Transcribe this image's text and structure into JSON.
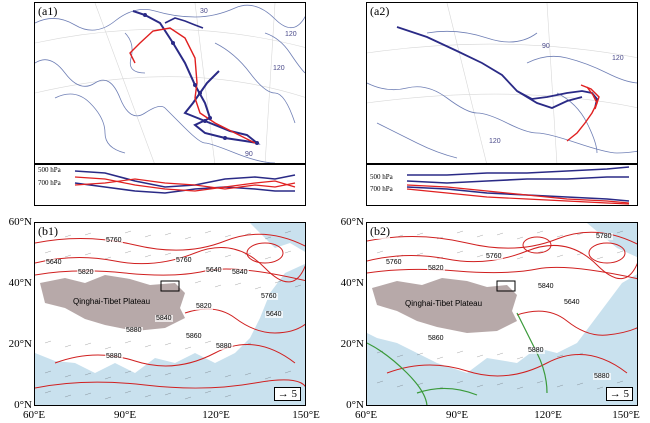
{
  "panels": {
    "a1": {
      "label": "(a1)",
      "grid_labels": [
        "30",
        "120",
        "120",
        "90"
      ]
    },
    "a2": {
      "label": "(a2)",
      "grid_labels": [
        "90",
        "120",
        "120"
      ]
    },
    "b1": {
      "label": "(b1)",
      "plateau": "Qinghai-Tibet Plateau",
      "contour_labels": [
        "5760",
        "5640",
        "5820",
        "5760",
        "5640",
        "5840",
        "5820",
        "5880",
        "5860",
        "5760",
        "5640",
        "5840",
        "5880",
        "5880"
      ]
    },
    "b2": {
      "label": "(b2)",
      "plateau": "Qinghai-Tibet Plateau",
      "contour_labels": [
        "5780",
        "5760",
        "5820",
        "5840",
        "5760",
        "5640",
        "5860",
        "5880",
        "5880"
      ]
    }
  },
  "profiles": {
    "levels": [
      "500 hPa",
      "700 hPa"
    ]
  },
  "axes": {
    "y_ticks": [
      "60°N",
      "40°N",
      "20°N",
      "0°N"
    ],
    "x_ticks": [
      "60°E",
      "90°E",
      "120°E",
      "150°E"
    ]
  },
  "vector_legend": {
    "arrow": "→",
    "value": "5"
  },
  "colors": {
    "trajectory_blue": "#2a2a86",
    "trajectory_red": "#e02020",
    "contour_red": "#d02020",
    "ocean": "#c9e1ee",
    "plateau": "#b7a9a9"
  }
}
